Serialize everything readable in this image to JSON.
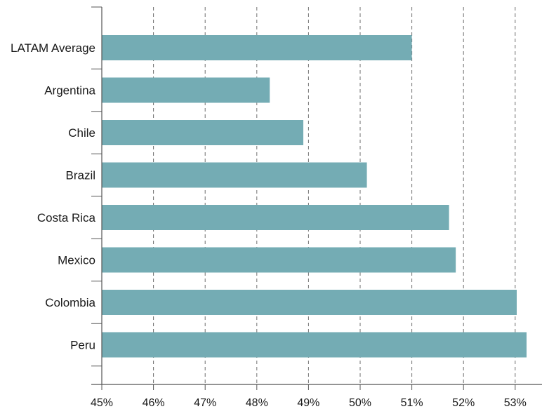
{
  "chart_data": {
    "type": "bar",
    "orientation": "horizontal",
    "categories": [
      "LATAM Average",
      "Argentina",
      "Chile",
      "Brazil",
      "Costa Rica",
      "Mexico",
      "Colombia",
      "Peru"
    ],
    "values": [
      51.0,
      48.25,
      48.9,
      50.13,
      51.72,
      51.85,
      53.03,
      53.22
    ],
    "unit": "%",
    "xlim": [
      45,
      53.22
    ],
    "x_ticks": [
      "45%",
      "46%",
      "47%",
      "48%",
      "49%",
      "50%",
      "51%",
      "52%",
      "53%"
    ],
    "grid": "vertical dashed",
    "bar_color": "#74acb4",
    "title": "",
    "xlabel": "",
    "ylabel": ""
  }
}
